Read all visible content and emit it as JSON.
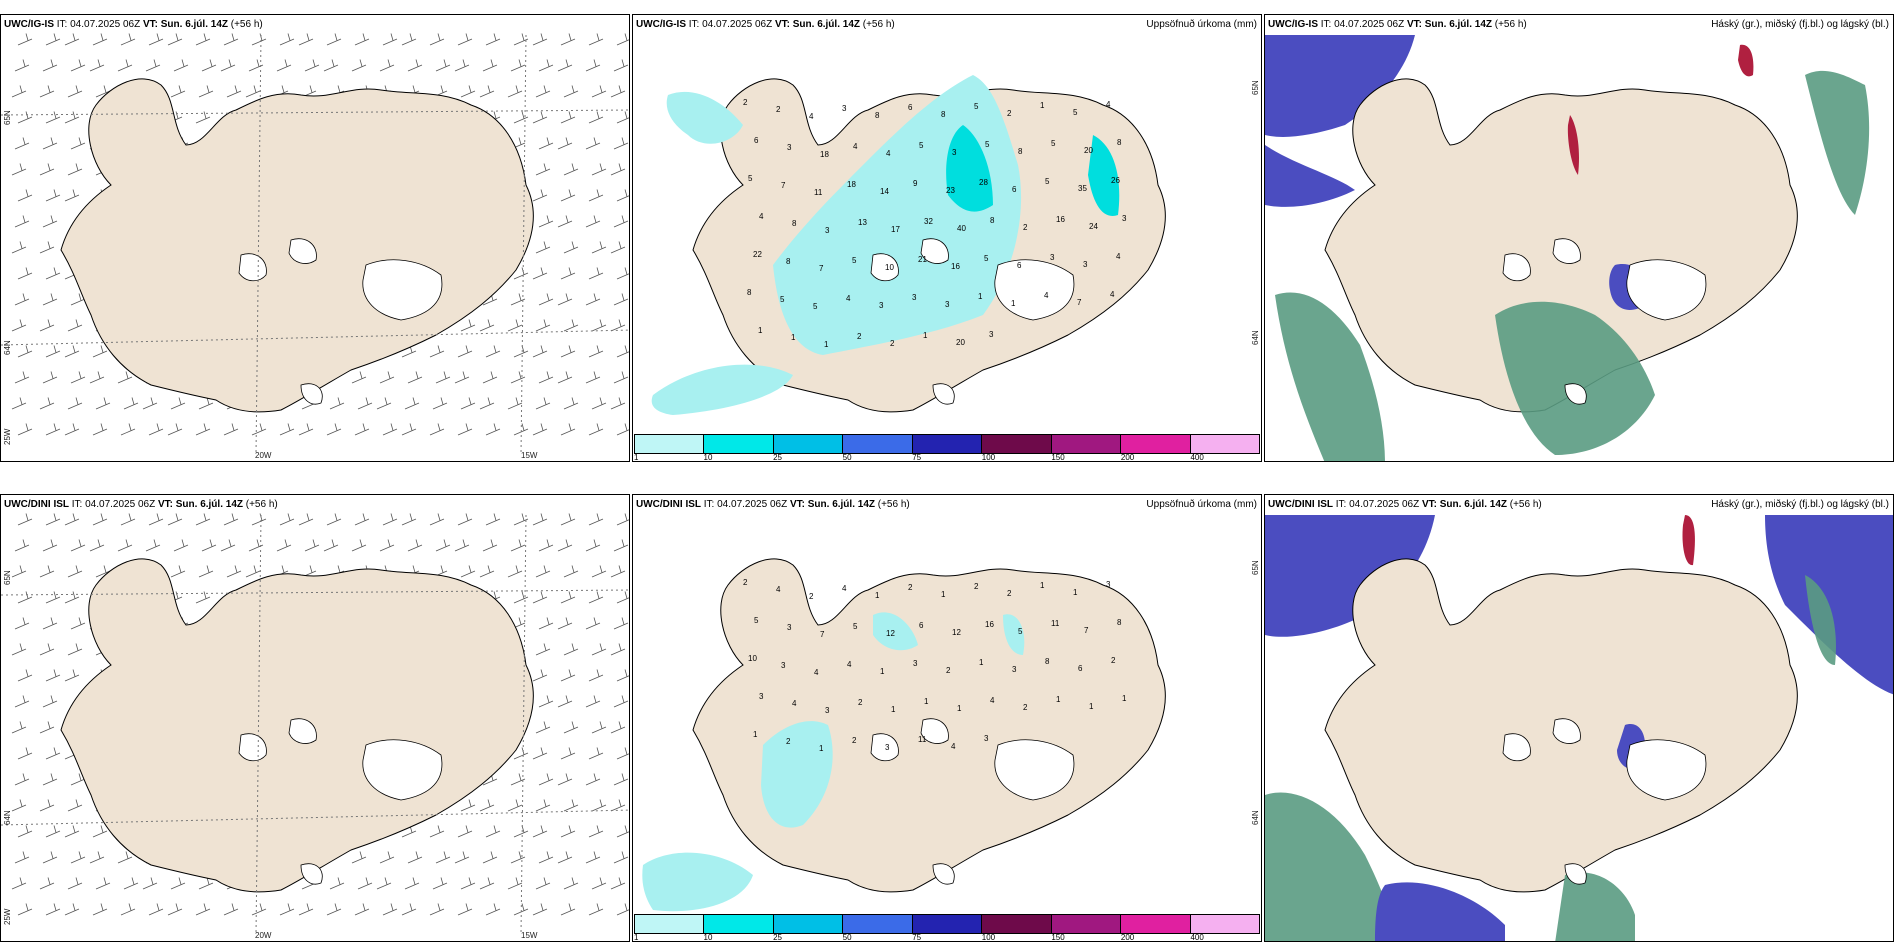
{
  "rows": [
    {
      "model": "UWC/IG-IS",
      "it_label": "IT: 04.07.2025 06Z",
      "vt_label": "VT: Sun. 6.júl. 14Z",
      "lead": "(+56 h)",
      "precip_title": "Uppsöfnuð úrkoma (mm)",
      "cloud_title": "Háský (gr.), miðský (fj.bl.) og lágský (bl.)",
      "precip_values": [
        "2",
        "2",
        "4",
        "3",
        "8",
        "6",
        "8",
        "5",
        "2",
        "1",
        "5",
        "4",
        "6",
        "3",
        "18",
        "4",
        "4",
        "5",
        "3",
        "5",
        "8",
        "5",
        "20",
        "8",
        "5",
        "7",
        "11",
        "18",
        "14",
        "9",
        "23",
        "28",
        "6",
        "5",
        "35",
        "26",
        "4",
        "8",
        "3",
        "13",
        "17",
        "32",
        "40",
        "8",
        "2",
        "16",
        "24",
        "3",
        "22",
        "8",
        "7",
        "5",
        "10",
        "21",
        "16",
        "5",
        "6",
        "3",
        "3",
        "4",
        "8",
        "5",
        "5",
        "4",
        "3",
        "3",
        "3",
        "1",
        "1",
        "4",
        "7",
        "4",
        "1",
        "1",
        "1",
        "2",
        "2",
        "1",
        "20",
        "3"
      ]
    },
    {
      "model": "UWC/DINI ISL",
      "it_label": "IT: 04.07.2025 06Z",
      "vt_label": "VT: Sun. 6.júl. 14Z",
      "lead": "(+56 h)",
      "precip_title": "Uppsöfnuð úrkoma (mm)",
      "cloud_title": "Háský (gr.), miðský (fj.bl.) og lágský (bl.)",
      "precip_values": [
        "2",
        "4",
        "2",
        "4",
        "1",
        "2",
        "1",
        "2",
        "2",
        "1",
        "1",
        "3",
        "5",
        "3",
        "7",
        "5",
        "12",
        "6",
        "12",
        "16",
        "5",
        "11",
        "7",
        "8",
        "10",
        "3",
        "4",
        "4",
        "1",
        "3",
        "2",
        "1",
        "3",
        "8",
        "6",
        "2",
        "3",
        "4",
        "3",
        "2",
        "1",
        "1",
        "1",
        "4",
        "2",
        "1",
        "1",
        "1",
        "1",
        "2",
        "1",
        "2",
        "3",
        "11",
        "4",
        "3"
      ]
    }
  ],
  "wind_axes": {
    "lat_top": "65N",
    "lat_bottom": "64N",
    "lon_left": "20W",
    "lon_right": "15W",
    "lon_edge": "25W"
  },
  "precip_axis": {
    "lat_top": "65N",
    "lat_bottom": "64N"
  },
  "colorbar": {
    "colors": [
      "#bff6f6",
      "#00e8e8",
      "#00bfe6",
      "#3b6be8",
      "#2323b0",
      "#6e0a4a",
      "#a01880",
      "#e020a0",
      "#f5b0f0"
    ],
    "labels": [
      "1",
      "10",
      "25",
      "50",
      "75",
      "100",
      "150",
      "200",
      "400"
    ]
  },
  "colors": {
    "land": "#efe3d3",
    "precip_light": "#a8f0f0",
    "precip_mid": "#00dede",
    "high_cloud": "#6b7fc0",
    "mid_cloud": "#5a9b82",
    "low_cloud": "#4b4dc0"
  }
}
